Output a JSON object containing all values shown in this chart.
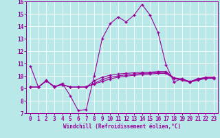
{
  "xlabel": "Windchill (Refroidissement éolien,°C)",
  "xlim": [
    -0.5,
    23.5
  ],
  "ylim": [
    7,
    16
  ],
  "yticks": [
    7,
    8,
    9,
    10,
    11,
    12,
    13,
    14,
    15,
    16
  ],
  "xticks": [
    0,
    1,
    2,
    3,
    4,
    5,
    6,
    7,
    8,
    9,
    10,
    11,
    12,
    13,
    14,
    15,
    16,
    17,
    18,
    19,
    20,
    21,
    22,
    23
  ],
  "bg_color": "#b8e8e8",
  "line_color": "#990099",
  "line1": [
    10.8,
    9.1,
    9.6,
    9.1,
    9.4,
    8.4,
    7.2,
    7.3,
    10.0,
    13.0,
    14.2,
    14.75,
    14.35,
    14.9,
    15.75,
    14.9,
    13.5,
    10.9,
    9.5,
    9.8,
    9.5,
    9.8,
    9.8,
    9.85
  ],
  "line2": [
    9.1,
    9.1,
    9.65,
    9.1,
    9.3,
    9.1,
    9.1,
    9.1,
    9.6,
    9.9,
    10.05,
    10.15,
    10.2,
    10.25,
    10.3,
    10.3,
    10.35,
    10.35,
    9.85,
    9.75,
    9.55,
    9.75,
    9.9,
    9.9
  ],
  "line3": [
    9.1,
    9.1,
    9.6,
    9.15,
    9.3,
    9.1,
    9.1,
    9.1,
    9.35,
    9.55,
    9.75,
    9.9,
    9.98,
    10.05,
    10.1,
    10.15,
    10.2,
    10.2,
    9.8,
    9.65,
    9.5,
    9.65,
    9.8,
    9.8
  ],
  "line4": [
    9.1,
    9.1,
    9.6,
    9.15,
    9.3,
    9.1,
    9.1,
    9.1,
    9.4,
    9.7,
    9.9,
    10.0,
    10.08,
    10.15,
    10.2,
    10.22,
    10.27,
    10.27,
    9.82,
    9.7,
    9.52,
    9.7,
    9.85,
    9.85
  ]
}
